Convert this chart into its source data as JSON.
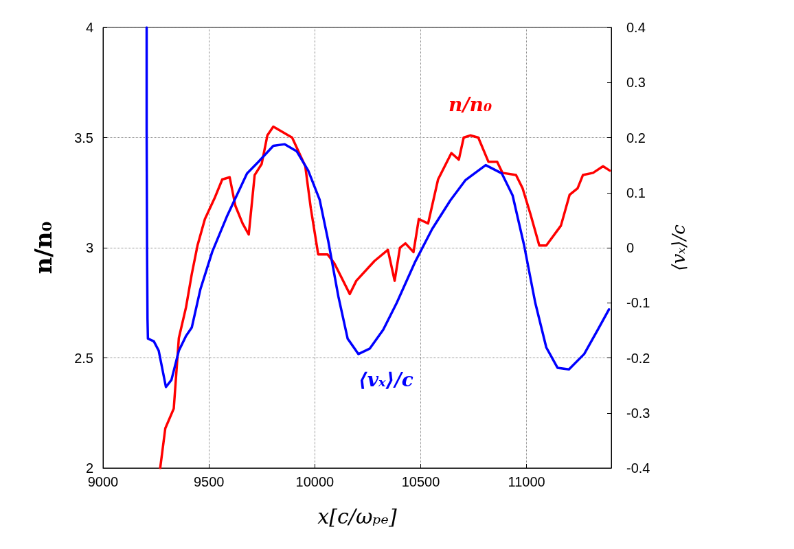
{
  "chart_data": {
    "type": "line",
    "xlabel": "x[c/ωₚₑ]",
    "ylabel": "n/n₀",
    "y2label": "⟨vₓ⟩/c",
    "xlim": [
      9000,
      11400
    ],
    "xticks": [
      9000,
      9500,
      10000,
      10500,
      11000
    ],
    "ylim": [
      2,
      4
    ],
    "yticks": [
      2,
      2.5,
      3,
      3.5,
      4
    ],
    "y2lim": [
      -0.4,
      0.4
    ],
    "y2ticks": [
      -0.4,
      -0.3,
      -0.2,
      -0.1,
      0,
      0.1,
      0.2,
      0.3,
      0.4
    ],
    "grid": true,
    "legend": false,
    "marker": "none",
    "line_style": "solid",
    "series": [
      {
        "name": "n/n₀",
        "color": "#ff0000",
        "x": [
          9270,
          9294,
          9334,
          9358,
          9392,
          9419,
          9446,
          9481,
          9529,
          9563,
          9598,
          9625,
          9659,
          9688,
          9716,
          9749,
          9776,
          9804,
          9893,
          9955,
          9981,
          10016,
          10060,
          10092,
          10165,
          10196,
          10282,
          10345,
          10377,
          10402,
          10428,
          10466,
          10491,
          10535,
          10582,
          10645,
          10680,
          10703,
          10734,
          10772,
          10820,
          10861,
          10886,
          10950,
          10981,
          11019,
          11060,
          11093,
          11162,
          11203,
          11241,
          11266,
          11314,
          11361,
          11393
        ],
        "values": [
          2.0,
          2.18,
          2.27,
          2.59,
          2.73,
          2.88,
          3.01,
          3.13,
          3.23,
          3.31,
          3.32,
          3.19,
          3.11,
          3.06,
          3.33,
          3.38,
          3.51,
          3.55,
          3.5,
          3.37,
          3.18,
          2.97,
          2.97,
          2.93,
          2.79,
          2.85,
          2.94,
          2.99,
          2.85,
          3.0,
          3.02,
          2.98,
          3.13,
          3.11,
          3.31,
          3.43,
          3.4,
          3.5,
          3.51,
          3.5,
          3.39,
          3.39,
          3.34,
          3.33,
          3.27,
          3.15,
          3.01,
          3.01,
          3.1,
          3.24,
          3.27,
          3.33,
          3.34,
          3.37,
          3.35
        ]
      },
      {
        "name": "⟨vₓ⟩/c",
        "color": "#0000ff",
        "axis": "y2",
        "x": [
          9206,
          9206,
          9208,
          9210,
          9212,
          9240,
          9263,
          9297,
          9323,
          9358,
          9392,
          9419,
          9460,
          9516,
          9584,
          9680,
          9734,
          9804,
          9858,
          9915,
          9969,
          10023,
          10064,
          10111,
          10155,
          10206,
          10260,
          10323,
          10387,
          10472,
          10554,
          10640,
          10712,
          10807,
          10883,
          10934,
          10988,
          11041,
          11093,
          11146,
          11200,
          11272,
          11336,
          11389
        ],
        "values": [
          0.4,
          0.214,
          -0.007,
          -0.129,
          -0.165,
          -0.17,
          -0.187,
          -0.253,
          -0.24,
          -0.187,
          -0.16,
          -0.145,
          -0.075,
          -0.007,
          0.056,
          0.135,
          0.156,
          0.185,
          0.188,
          0.175,
          0.14,
          0.087,
          0.011,
          -0.088,
          -0.165,
          -0.193,
          -0.183,
          -0.149,
          -0.1,
          -0.027,
          0.034,
          0.086,
          0.123,
          0.15,
          0.135,
          0.095,
          0.005,
          -0.1,
          -0.181,
          -0.218,
          -0.221,
          -0.193,
          -0.149,
          -0.112
        ]
      }
    ]
  }
}
